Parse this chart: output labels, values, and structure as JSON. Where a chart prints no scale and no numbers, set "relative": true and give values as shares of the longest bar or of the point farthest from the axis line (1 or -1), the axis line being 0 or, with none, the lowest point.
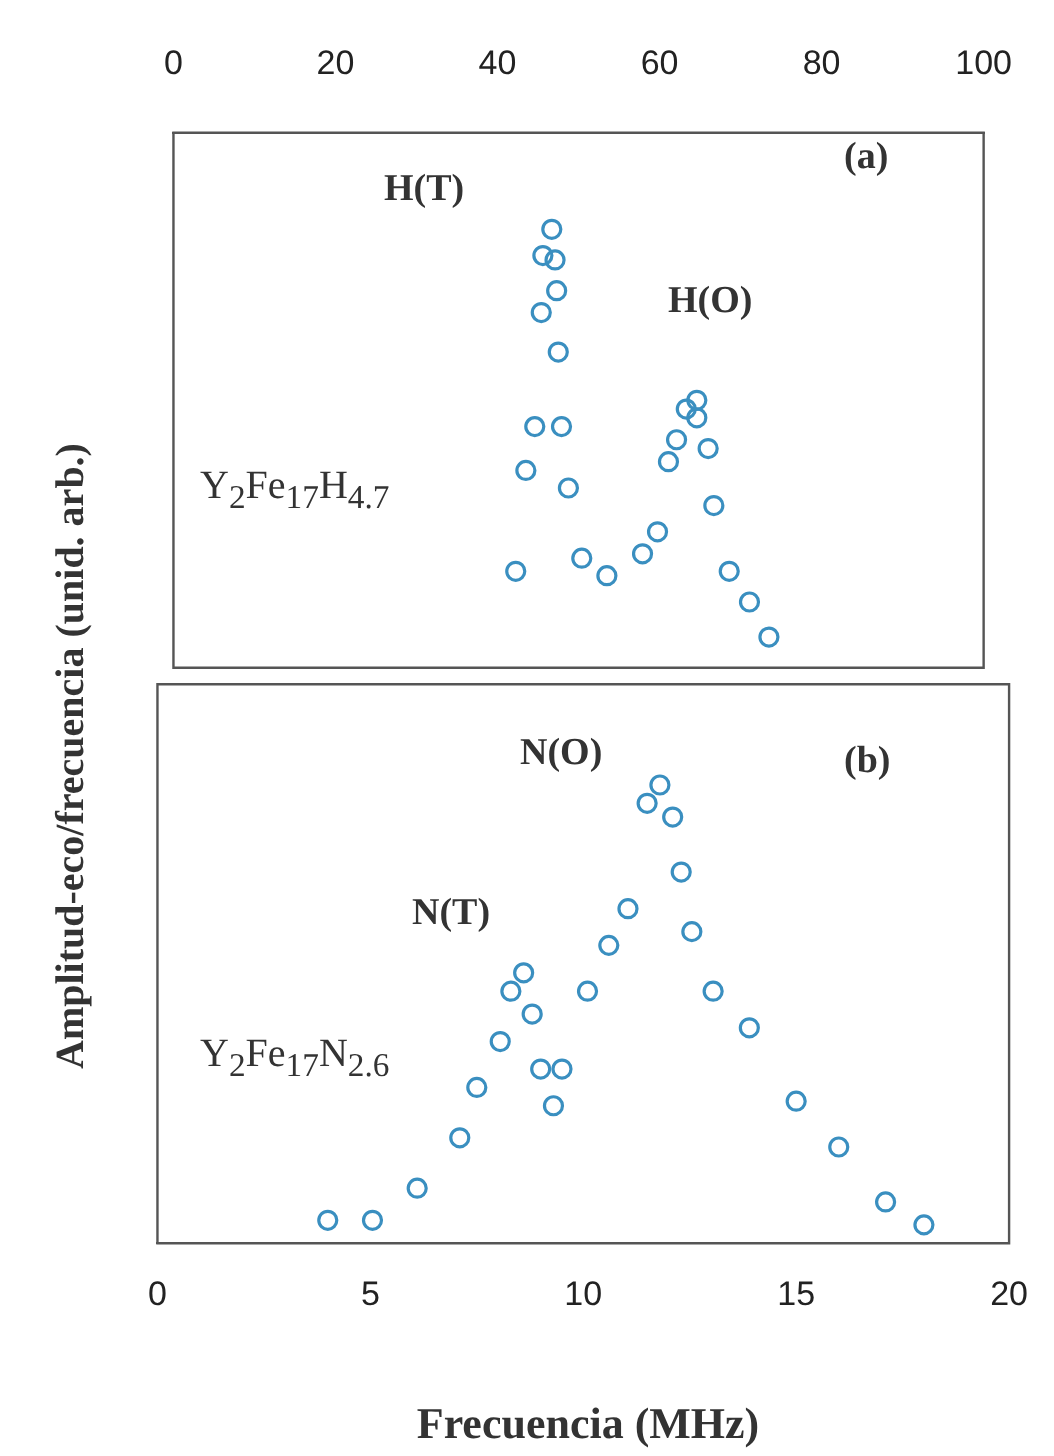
{
  "chart_data": [
    {
      "type": "scatter",
      "ylabel": "Amplitud-eco/frecuencia (unid. arb.)",
      "relative": true,
      "xlim": [
        0,
        100
      ],
      "xticks": [
        0,
        20,
        40,
        60,
        80,
        100
      ],
      "marker": "circle",
      "grid": false,
      "legend": false,
      "annotations": [
        "(a)",
        "H(T)",
        "H(O)",
        "Y$_{2}$Fe$_{17}$H$_{4.7}$"
      ],
      "series": [
        {
          "color": "#3a8fc0",
          "x": [
            46.7,
            45.6,
            47.1,
            47.3,
            45.4,
            47.5,
            44.6,
            47.9,
            43.5,
            48.75,
            42.25,
            50.4,
            53.5,
            57.9,
            59.75,
            61.1,
            62.1,
            63.3,
            64.6,
            64.6,
            66,
            66.7,
            68.6,
            71.1,
            73.5
          ],
          "values": [
            1.0,
            0.94,
            0.93,
            0.86,
            0.81,
            0.72,
            0.55,
            0.55,
            0.45,
            0.41,
            0.22,
            0.25,
            0.21,
            0.26,
            0.31,
            0.47,
            0.52,
            0.59,
            0.61,
            0.57,
            0.5,
            0.37,
            0.22,
            0.15,
            0.07
          ]
        }
      ]
    },
    {
      "type": "scatter",
      "xlabel": "Frecuencia (MHz)",
      "relative": true,
      "xlim": [
        0,
        20
      ],
      "xticks": [
        0,
        5,
        10,
        15,
        20
      ],
      "marker": "circle",
      "grid": false,
      "legend": false,
      "annotations": [
        "(b)",
        "N(O)",
        "N(T)",
        "Y$_{2}$Fe$_{17}$N$_{2.6}$"
      ],
      "series": [
        {
          "color": "#3a8fc0",
          "x": [
            4.0,
            5.05,
            6.1,
            7.1,
            7.5,
            8.05,
            8.3,
            8.6,
            8.8,
            9.0,
            9.5,
            9.3,
            10.1,
            10.6,
            11.05,
            11.5,
            11.8,
            12.1,
            12.3,
            12.55,
            13.05,
            13.9,
            15.0,
            16.0,
            17.1,
            18.0
          ],
          "values": [
            0.05,
            0.05,
            0.12,
            0.23,
            0.34,
            0.44,
            0.55,
            0.59,
            0.5,
            0.38,
            0.38,
            0.3,
            0.55,
            0.65,
            0.73,
            0.96,
            1.0,
            0.93,
            0.81,
            0.68,
            0.55,
            0.47,
            0.31,
            0.21,
            0.09,
            0.04
          ]
        }
      ]
    }
  ]
}
